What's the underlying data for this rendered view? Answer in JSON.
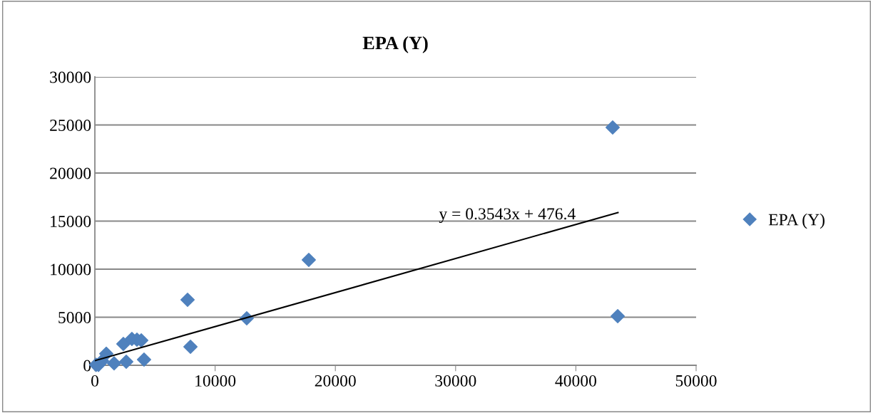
{
  "chart_data": {
    "type": "scatter",
    "title": "EPA (Y)",
    "xlim": [
      0,
      50000
    ],
    "ylim": [
      0,
      30000
    ],
    "xticks": [
      0,
      10000,
      20000,
      30000,
      40000,
      50000
    ],
    "yticks": [
      0,
      5000,
      10000,
      15000,
      20000,
      25000,
      30000
    ],
    "grid": "y",
    "legend": "right",
    "marker": "diamond",
    "series": [
      {
        "name": "EPA (Y)",
        "color": "#4f81bd",
        "x": [
          100,
          300,
          600,
          950,
          1600,
          2370,
          2610,
          3080,
          3500,
          3860,
          4090,
          7710,
          7950,
          12630,
          17790,
          43060,
          43480
        ],
        "values": [
          50,
          50,
          450,
          1200,
          200,
          2220,
          370,
          2740,
          2670,
          2590,
          590,
          6810,
          1930,
          4890,
          10960,
          24740,
          5110
        ]
      },
      {
        "type": "line",
        "color": "#000000",
        "marker": "none",
        "x": [
          0,
          43500
        ],
        "values": [
          480,
          15890
        ]
      }
    ],
    "annotations": [
      "y = 0.3543x + 476.4"
    ]
  }
}
